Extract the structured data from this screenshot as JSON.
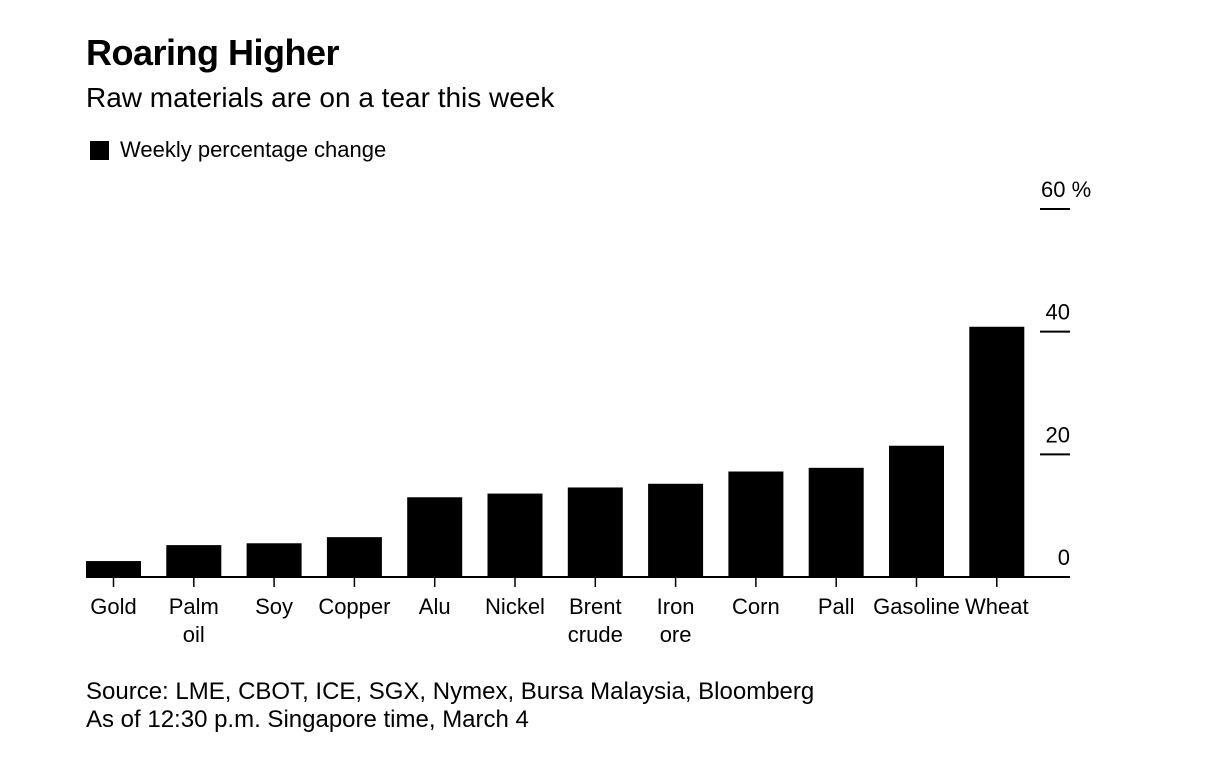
{
  "chart_data": {
    "type": "bar",
    "title": "Roaring Higher",
    "subtitle": "Raw materials are on a tear this week",
    "legend": [
      "Weekly percentage change"
    ],
    "categories": [
      [
        "Gold"
      ],
      [
        "Palm",
        "oil"
      ],
      [
        "Soy"
      ],
      [
        "Copper"
      ],
      [
        "Alu"
      ],
      [
        "Nickel"
      ],
      [
        "Brent",
        "crude"
      ],
      [
        "Iron",
        "ore"
      ],
      [
        "Corn"
      ],
      [
        "Pall"
      ],
      [
        "Gasoline"
      ],
      [
        "Wheat"
      ]
    ],
    "series": [
      {
        "name": "Weekly percentage change",
        "values": [
          2.6,
          5.2,
          5.5,
          6.5,
          13.0,
          13.6,
          14.6,
          15.2,
          17.2,
          17.8,
          21.4,
          40.8
        ]
      }
    ],
    "yticks": [
      {
        "value": 0,
        "label": "0"
      },
      {
        "value": 20,
        "label": "20"
      },
      {
        "value": 40,
        "label": "40"
      },
      {
        "value": 60,
        "label": "60 %"
      }
    ],
    "ylim": [
      0,
      60
    ],
    "xlabel": "",
    "ylabel": "",
    "bar_color": "#000000"
  },
  "footer": {
    "source": "Source: LME, CBOT, ICE, SGX, Nymex, Bursa Malaysia, Bloomberg",
    "note": "As of 12:30 p.m. Singapore time, March 4"
  }
}
